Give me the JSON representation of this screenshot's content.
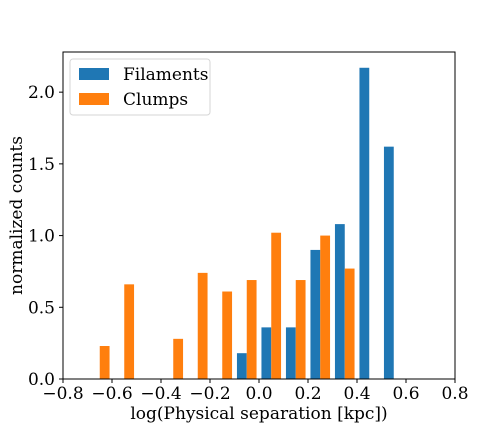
{
  "chart_data": {
    "type": "bar",
    "title": "",
    "xlabel": "log(Physical separation [kpc])",
    "ylabel": "normalized counts",
    "xlim": [
      -0.8,
      0.8
    ],
    "ylim": [
      0,
      2.28
    ],
    "xticks": [
      -0.8,
      -0.6,
      -0.4,
      -0.2,
      0.0,
      0.2,
      0.4,
      0.6,
      0.8
    ],
    "xtick_labels": [
      "−0.8",
      "−0.6",
      "−0.4",
      "−0.2",
      "0.0",
      "0.2",
      "0.4",
      "0.6",
      "0.8"
    ],
    "yticks": [
      0.0,
      0.5,
      1.0,
      1.5,
      2.0
    ],
    "ytick_labels": [
      "0.0",
      "0.5",
      "1.0",
      "1.5",
      "2.0"
    ],
    "grid": false,
    "legend_position": "top-left",
    "bins": [
      [
        -0.7,
        -0.6
      ],
      [
        -0.6,
        -0.5
      ],
      [
        -0.5,
        -0.4
      ],
      [
        -0.4,
        -0.3
      ],
      [
        -0.3,
        -0.2
      ],
      [
        -0.2,
        -0.1
      ],
      [
        -0.1,
        0.0
      ],
      [
        0.0,
        0.1
      ],
      [
        0.1,
        0.2
      ],
      [
        0.2,
        0.3
      ],
      [
        0.3,
        0.4
      ],
      [
        0.4,
        0.5
      ],
      [
        0.5,
        0.6
      ],
      [
        0.6,
        0.7
      ],
      [
        0.7,
        0.8
      ]
    ],
    "series": [
      {
        "name": "Filaments",
        "color": "#1f77b4",
        "values": [
          0,
          0,
          0,
          0,
          0,
          0,
          0.18,
          0.36,
          0.36,
          0.9,
          1.08,
          2.17,
          1.62,
          0,
          0
        ]
      },
      {
        "name": "Clumps",
        "color": "#ff7f0e",
        "values": [
          0.23,
          0.66,
          0,
          0.28,
          0.74,
          0.61,
          0.69,
          1.02,
          0.69,
          1.0,
          0.77,
          0,
          0,
          0,
          0
        ]
      }
    ]
  }
}
